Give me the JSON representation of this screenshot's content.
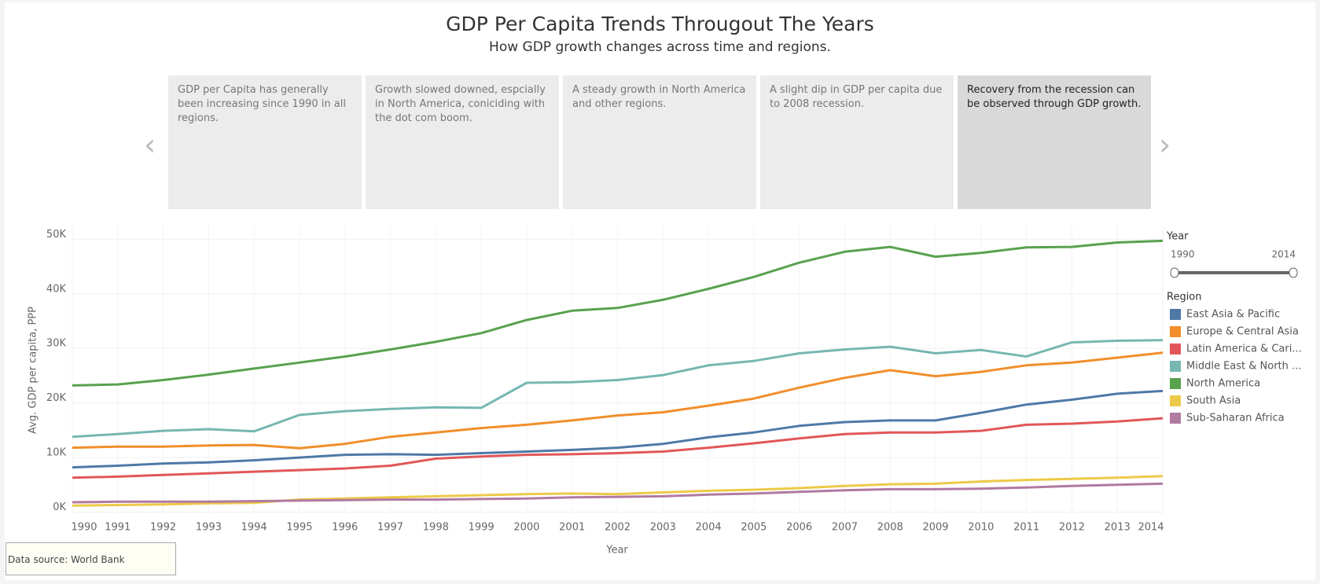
{
  "header": {
    "title": "GDP Per Capita Trends Througout The Years",
    "subtitle": "How GDP growth changes across time and regions."
  },
  "story_points": [
    "GDP per Capita has generally been increasing since 1990 in all regions.",
    "Growth slowed downed, espcially in North America, coniciding with the dot com boom.",
    "A steady growth in North America and other regions.",
    "A slight dip in GDP per capita due to 2008 recession.",
    "Recovery from the recession can be observed through GDP growth."
  ],
  "selected_story": 4,
  "chart_data": {
    "type": "line",
    "x_label": "Year",
    "y_label": "Avg. GDP per capita, PPP",
    "x": [
      1990,
      1991,
      1992,
      1993,
      1994,
      1995,
      1996,
      1997,
      1998,
      1999,
      2000,
      2001,
      2002,
      2003,
      2004,
      2005,
      2006,
      2007,
      2008,
      2009,
      2010,
      2011,
      2012,
      2013,
      2014
    ],
    "xlim": [
      1990,
      2014
    ],
    "xticks": [
      1990,
      1991,
      1992,
      1993,
      1994,
      1995,
      1996,
      1997,
      1998,
      1999,
      2000,
      2001,
      2002,
      2003,
      2004,
      2005,
      2006,
      2007,
      2008,
      2009,
      2010,
      2011,
      2012,
      2013,
      2014
    ],
    "ylim": [
      -500,
      52500
    ],
    "yticks": [
      {
        "value": 0,
        "label": "0K"
      },
      {
        "value": 10000,
        "label": "10K"
      },
      {
        "value": 20000,
        "label": "20K"
      },
      {
        "value": 30000,
        "label": "30K"
      },
      {
        "value": 40000,
        "label": "40K"
      },
      {
        "value": 50000,
        "label": "50K"
      }
    ],
    "grid": true,
    "legend_title": "Region",
    "year_filter": {
      "title": "Year",
      "min": 1990,
      "max": 2014
    },
    "series": [
      {
        "name": "East Asia & Pacific",
        "color": "#4e79a7",
        "values": [
          8200,
          8500,
          8900,
          9100,
          9500,
          10000,
          10500,
          10600,
          10500,
          10800,
          11100,
          11400,
          11800,
          12500,
          13700,
          14600,
          15800,
          16500,
          16800,
          16800,
          18200,
          19700,
          20600,
          21700,
          22200
        ]
      },
      {
        "name": "Europe & Central Asia",
        "color": "#f28e2b",
        "values": [
          11800,
          12000,
          12000,
          12200,
          12300,
          11700,
          12500,
          13800,
          14600,
          15400,
          16000,
          16800,
          17700,
          18300,
          19500,
          20800,
          22800,
          24600,
          26000,
          24900,
          25700,
          26900,
          27400,
          28300,
          29200
        ]
      },
      {
        "name": "Latin America & Cari...",
        "color": "#e15759",
        "values": [
          6300,
          6500,
          6800,
          7100,
          7400,
          7700,
          8000,
          8500,
          9800,
          10200,
          10500,
          10600,
          10800,
          11100,
          11800,
          12600,
          13500,
          14300,
          14600,
          14600,
          14900,
          16000,
          16200,
          16600,
          17200
        ]
      },
      {
        "name": "Middle East & North ...",
        "color": "#76b7b2",
        "values": [
          13800,
          14300,
          14900,
          15200,
          14800,
          17800,
          18500,
          18900,
          19200,
          19100,
          23700,
          23800,
          24200,
          25100,
          26900,
          27700,
          29100,
          29800,
          30300,
          29100,
          29700,
          28500,
          31100,
          31400,
          31500
        ]
      },
      {
        "name": "North America",
        "color": "#59a14f",
        "values": [
          23200,
          23400,
          24200,
          25200,
          26300,
          27400,
          28500,
          29800,
          31200,
          32800,
          35200,
          36900,
          37400,
          38900,
          40900,
          43100,
          45700,
          47700,
          48600,
          46800,
          47500,
          48500,
          48600,
          49400,
          49700
        ]
      },
      {
        "name": "South Asia",
        "color": "#edc948",
        "values": [
          1200,
          1300,
          1400,
          1600,
          1700,
          2300,
          2500,
          2700,
          2900,
          3100,
          3300,
          3400,
          3300,
          3600,
          3900,
          4100,
          4400,
          4800,
          5100,
          5200,
          5600,
          5900,
          6100,
          6300,
          6600
        ]
      },
      {
        "name": "Sub-Saharan Africa",
        "color": "#b07aa1",
        "values": [
          1800,
          1900,
          1900,
          1900,
          2000,
          2100,
          2200,
          2300,
          2300,
          2400,
          2500,
          2700,
          2800,
          2900,
          3200,
          3400,
          3700,
          4000,
          4200,
          4200,
          4300,
          4500,
          4800,
          5000,
          5200
        ]
      }
    ]
  },
  "footer": {
    "source": "Data source: World Bank"
  }
}
